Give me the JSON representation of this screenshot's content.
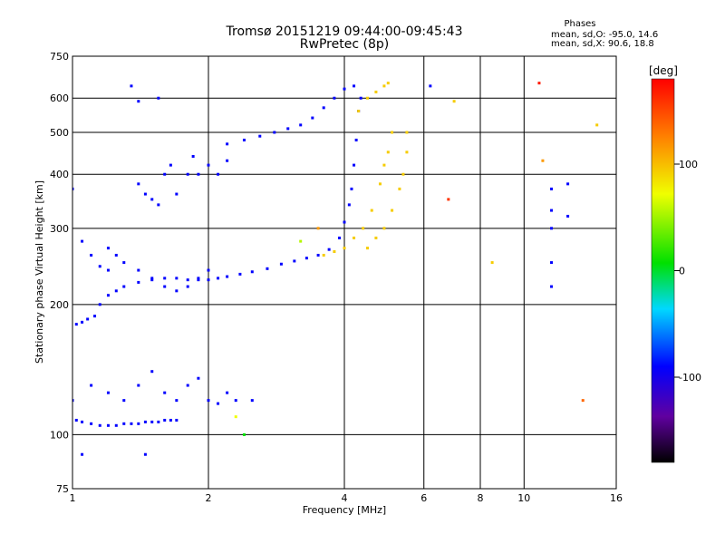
{
  "title": {
    "line1": "Tromsø 20151219 09:44:00-09:45:43",
    "line2": "RwPretec (8p)"
  },
  "phases_box": {
    "title": "Phases",
    "line1": "mean, sd,O: -95.0, 14.6",
    "line2": "mean, sd,X:  90.6, 18.8"
  },
  "colorbar": {
    "label": "[deg]",
    "ticks": [
      "100",
      "0",
      "-100"
    ],
    "tick_values": [
      100,
      0,
      -100
    ],
    "range": [
      -180,
      180
    ]
  },
  "chart_data": {
    "type": "scatter",
    "title": "Tromsø 20151219 09:44:00-09:45:43",
    "subtitle": "RwPretec (8p)",
    "xlabel": "Frequency [MHz]",
    "ylabel": "Stationary phase Virtual Height [km]",
    "xscale": "log",
    "yscale": "log",
    "xlim": [
      1,
      16
    ],
    "ylim": [
      75,
      750
    ],
    "x_ticks": [
      1,
      2,
      4,
      6,
      8,
      10,
      16
    ],
    "x_tick_labels": [
      "1",
      "2",
      "4",
      "6",
      "8",
      "10",
      "16"
    ],
    "y_ticks": [
      75,
      100,
      200,
      300,
      400,
      500,
      600,
      750
    ],
    "y_tick_labels": [
      "75",
      "100",
      "200",
      "300",
      "400",
      "500",
      "600",
      "750"
    ],
    "grid": true,
    "color_encoding": "phase (deg)",
    "series": [
      {
        "points": [
          [
            1.02,
            108,
            -100
          ],
          [
            1.05,
            107,
            -100
          ],
          [
            1.1,
            106,
            -100
          ],
          [
            1.15,
            105,
            -100
          ],
          [
            1.2,
            105,
            -100
          ],
          [
            1.25,
            105,
            -100
          ],
          [
            1.3,
            106,
            -100
          ],
          [
            1.35,
            106,
            -100
          ],
          [
            1.4,
            106,
            -100
          ],
          [
            1.45,
            107,
            -100
          ],
          [
            1.5,
            107,
            -100
          ],
          [
            1.55,
            107,
            -100
          ],
          [
            1.6,
            108,
            -100
          ],
          [
            1.65,
            108,
            -100
          ],
          [
            1.7,
            108,
            -100
          ]
        ]
      },
      {
        "points": [
          [
            1.02,
            180,
            -100
          ],
          [
            1.05,
            182,
            -100
          ],
          [
            1.08,
            185,
            -100
          ],
          [
            1.12,
            188,
            -100
          ],
          [
            1.15,
            200,
            -100
          ],
          [
            1.2,
            210,
            -100
          ],
          [
            1.25,
            215,
            -100
          ],
          [
            1.3,
            220,
            -100
          ],
          [
            1.4,
            225,
            -100
          ],
          [
            1.5,
            228,
            -100
          ],
          [
            1.6,
            230,
            -100
          ],
          [
            1.7,
            230,
            -100
          ],
          [
            1.8,
            228,
            -100
          ],
          [
            1.9,
            228,
            -100
          ],
          [
            2.0,
            228,
            -100
          ],
          [
            2.1,
            230,
            -100
          ],
          [
            2.2,
            232,
            -100
          ],
          [
            2.35,
            235,
            -100
          ],
          [
            2.5,
            238,
            -100
          ],
          [
            2.7,
            242,
            -100
          ],
          [
            2.9,
            248,
            -100
          ],
          [
            3.1,
            252,
            -100
          ],
          [
            3.3,
            256,
            -100
          ],
          [
            3.5,
            260,
            -100
          ],
          [
            3.7,
            268,
            -100
          ],
          [
            3.9,
            285,
            -100
          ],
          [
            4.0,
            310,
            -100
          ],
          [
            4.1,
            340,
            -100
          ],
          [
            4.15,
            370,
            -100
          ],
          [
            4.2,
            420,
            -100
          ],
          [
            4.25,
            480,
            -100
          ],
          [
            4.3,
            560,
            -100
          ],
          [
            4.35,
            600,
            -100
          ]
        ]
      },
      {
        "points": [
          [
            3.6,
            260,
            100
          ],
          [
            3.8,
            265,
            100
          ],
          [
            4.0,
            270,
            100
          ],
          [
            4.2,
            285,
            100
          ],
          [
            4.4,
            300,
            100
          ],
          [
            4.6,
            330,
            100
          ],
          [
            4.8,
            380,
            100
          ],
          [
            4.9,
            420,
            100
          ],
          [
            5.0,
            450,
            100
          ],
          [
            5.1,
            500,
            100
          ]
        ]
      },
      {
        "points": [
          [
            4.5,
            270,
            100
          ],
          [
            4.7,
            285,
            100
          ],
          [
            4.9,
            300,
            100
          ],
          [
            5.1,
            330,
            100
          ],
          [
            5.3,
            370,
            100
          ],
          [
            5.4,
            400,
            100
          ],
          [
            5.5,
            450,
            100
          ],
          [
            5.5,
            500,
            100
          ]
        ]
      },
      {
        "points": [
          [
            2.2,
            470,
            -100
          ],
          [
            2.4,
            480,
            -100
          ],
          [
            2.6,
            490,
            -100
          ],
          [
            2.8,
            500,
            -100
          ],
          [
            3.0,
            510,
            -100
          ],
          [
            3.2,
            520,
            -100
          ],
          [
            3.4,
            540,
            -100
          ],
          [
            3.6,
            570,
            -100
          ],
          [
            3.8,
            600,
            -100
          ],
          [
            4.0,
            630,
            -100
          ],
          [
            4.2,
            640,
            -100
          ]
        ]
      },
      {
        "points": [
          [
            4.3,
            560,
            100
          ],
          [
            4.5,
            600,
            100
          ],
          [
            4.7,
            620,
            100
          ],
          [
            4.9,
            640,
            100
          ],
          [
            5.0,
            650,
            100
          ]
        ]
      },
      {
        "points": [
          [
            1.0,
            120,
            -100
          ],
          [
            1.1,
            130,
            -100
          ],
          [
            1.2,
            125,
            -100
          ],
          [
            1.3,
            120,
            -100
          ],
          [
            1.4,
            130,
            -100
          ],
          [
            1.5,
            140,
            -100
          ],
          [
            1.6,
            125,
            -100
          ],
          [
            1.7,
            120,
            -100
          ],
          [
            1.8,
            130,
            -100
          ],
          [
            1.9,
            135,
            -100
          ],
          [
            2.0,
            120,
            -100
          ],
          [
            2.1,
            118,
            -100
          ],
          [
            2.2,
            125,
            -100
          ],
          [
            2.3,
            120,
            -100
          ],
          [
            2.5,
            120,
            -100
          ]
        ]
      },
      {
        "points": [
          [
            1.05,
            280,
            -100
          ],
          [
            1.1,
            260,
            -100
          ],
          [
            1.15,
            245,
            -100
          ],
          [
            1.2,
            240,
            -100
          ],
          [
            1.25,
            260,
            -100
          ],
          [
            1.3,
            250,
            -100
          ],
          [
            1.4,
            240,
            -100
          ],
          [
            1.5,
            230,
            -100
          ],
          [
            1.6,
            220,
            -100
          ],
          [
            1.7,
            215,
            -100
          ],
          [
            1.8,
            220,
            -100
          ],
          [
            1.9,
            230,
            -100
          ],
          [
            2.0,
            240,
            -100
          ]
        ]
      },
      {
        "points": [
          [
            1.4,
            380,
            -100
          ],
          [
            1.45,
            360,
            -100
          ],
          [
            1.5,
            350,
            -100
          ],
          [
            1.55,
            340,
            -100
          ],
          [
            1.6,
            400,
            -100
          ],
          [
            1.65,
            420,
            -100
          ],
          [
            1.7,
            360,
            -100
          ],
          [
            1.8,
            400,
            -100
          ],
          [
            1.85,
            440,
            -100
          ],
          [
            1.9,
            400,
            -100
          ],
          [
            2.0,
            420,
            -100
          ],
          [
            2.1,
            400,
            -100
          ],
          [
            2.2,
            430,
            -100
          ]
        ]
      },
      {
        "points": [
          [
            11.5,
            300,
            -100
          ],
          [
            11.5,
            330,
            -100
          ],
          [
            11.5,
            370,
            -100
          ],
          [
            11.5,
            250,
            -100
          ],
          [
            11.5,
            220,
            -100
          ],
          [
            12.5,
            320,
            -100
          ],
          [
            12.5,
            380,
            -100
          ]
        ]
      },
      {
        "points": [
          [
            1.0,
            370,
            -100
          ],
          [
            1.35,
            640,
            -100
          ],
          [
            1.55,
            600,
            -100
          ],
          [
            1.4,
            590,
            -100
          ],
          [
            6.2,
            640,
            -100
          ],
          [
            7.0,
            590,
            100
          ],
          [
            8.5,
            250,
            100
          ],
          [
            10.8,
            650,
            170
          ],
          [
            11.0,
            430,
            120
          ],
          [
            13.5,
            120,
            140
          ],
          [
            14.5,
            520,
            100
          ],
          [
            6.8,
            350,
            160
          ],
          [
            1.2,
            270,
            -100
          ],
          [
            2.4,
            100,
            0
          ],
          [
            2.3,
            110,
            80
          ],
          [
            3.2,
            280,
            60
          ],
          [
            3.5,
            300,
            120
          ],
          [
            1.05,
            90,
            -100
          ],
          [
            1.45,
            90,
            -100
          ]
        ]
      }
    ]
  }
}
